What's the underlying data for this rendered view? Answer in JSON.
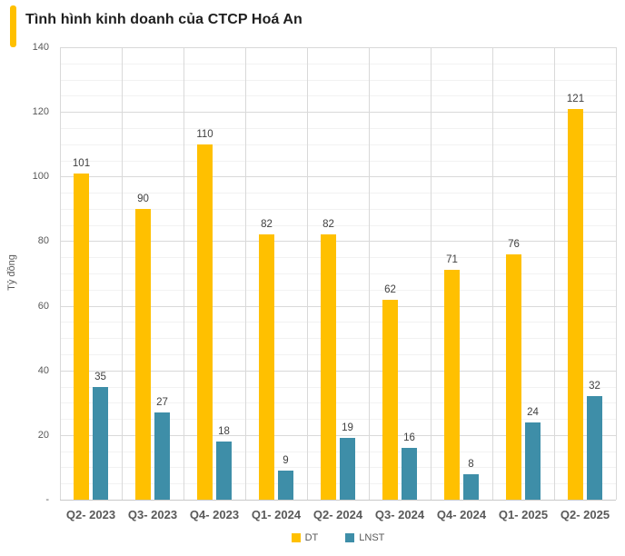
{
  "title": "Tình hình kinh doanh của CTCP Hoá An",
  "colors": {
    "accent_bar": "#FFC000",
    "dt_series": "#FFC000",
    "lnst_series": "#3E8EA8",
    "major_grid": "#D9D9D9",
    "minor_grid": "#F2F2F2",
    "axis_line": "#C9C9C9",
    "axis_text": "#595959",
    "value_label_text": "#404040",
    "title_text": "#1F1F1F"
  },
  "chart_data": {
    "type": "bar",
    "title": "Tình hình kinh doanh của CTCP Hoá An",
    "categories": [
      "Q2- 2023",
      "Q3- 2023",
      "Q4- 2023",
      "Q1- 2024",
      "Q2- 2024",
      "Q3- 2024",
      "Q4- 2024",
      "Q1- 2025",
      "Q2- 2025"
    ],
    "series": [
      {
        "name": "DT",
        "color": "#FFC000",
        "values": [
          101,
          90,
          110,
          82,
          82,
          62,
          71,
          76,
          121
        ]
      },
      {
        "name": "LNST",
        "color": "#3E8EA8",
        "values": [
          35,
          27,
          18,
          9,
          19,
          16,
          8,
          24,
          32
        ]
      }
    ],
    "xlabel": "",
    "ylabel": "Tỷ đồng",
    "ylim": [
      0,
      140
    ],
    "y_ticks": [
      {
        "value": 0,
        "label": "-"
      },
      {
        "value": 20,
        "label": "20"
      },
      {
        "value": 40,
        "label": "40"
      },
      {
        "value": 60,
        "label": "60"
      },
      {
        "value": 80,
        "label": "80"
      },
      {
        "value": 100,
        "label": "100"
      },
      {
        "value": 120,
        "label": "120"
      },
      {
        "value": 140,
        "label": "140"
      }
    ],
    "y_major_unit": 20,
    "y_minor_unit": 5,
    "grid": true,
    "legend_position": "bottom"
  }
}
